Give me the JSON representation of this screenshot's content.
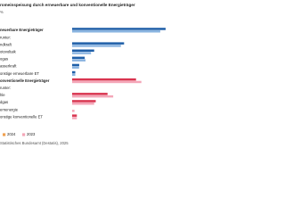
{
  "chart_data": {
    "type": "hbar",
    "title": "romeinspeisung durch erneuerbare und konventionelle Energieträger",
    "subtitle": "%",
    "categories": [
      "neuerbare Energieträger",
      "runter:",
      "ndkraft",
      "otovoltaik",
      "ogas",
      "asserkraft",
      "onstige erneuerbare ET",
      "onventionelle Energieträger",
      "runter:",
      "hle",
      "dgas",
      "ernenergie",
      "onstige konventionelle ET"
    ],
    "bold": [
      true,
      false,
      false,
      false,
      false,
      false,
      false,
      true,
      false,
      false,
      false,
      false,
      false
    ],
    "series": [
      {
        "name": "2024",
        "color": "#f0a050",
        "colors": [
          "#1f5fa8",
          "#1f5fa8",
          "#1f5fa8",
          "#1f5fa8",
          "#1f5fa8",
          "#1f5fa8",
          "#1f5fa8",
          "#d9344f",
          "#d9344f",
          "#d9344f",
          "#d9344f",
          "#d9344f",
          "#d9344f"
        ],
        "values": [
          59.4,
          null,
          33,
          14,
          8,
          4.5,
          2,
          40.6,
          null,
          22.5,
          15,
          0,
          3
        ]
      },
      {
        "name": "2023",
        "color": "#f4a6b8",
        "colors": [
          "#8ab4e0",
          "#8ab4e0",
          "#8ab4e0",
          "#8ab4e0",
          "#8ab4e0",
          "#8ab4e0",
          "#8ab4e0",
          "#f4a6b8",
          "#f4a6b8",
          "#f4a6b8",
          "#f4a6b8",
          "#f4a6b8",
          "#f4a6b8"
        ],
        "values": [
          56,
          null,
          31,
          12,
          8.5,
          4.4,
          2,
          44,
          null,
          26.1,
          14,
          1.5,
          3
        ]
      }
    ],
    "xlim": [
      0,
      60
    ],
    "source": "Statistisches Bundesamt (Destatis), 2025"
  }
}
